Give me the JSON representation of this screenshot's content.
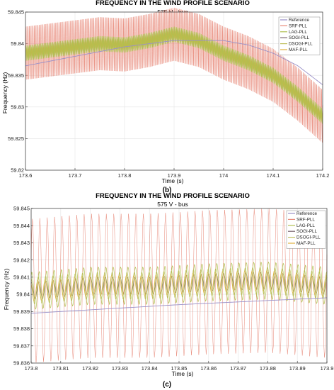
{
  "panel_labels": [
    "(b)",
    "(c)"
  ],
  "colors": {
    "reference": "#9a90c8",
    "srf": "#e88878",
    "lag": "#b0c050",
    "sogi": "#7a6470",
    "dsogi": "#c0c060",
    "maf": "#e0b040"
  },
  "chart_data": [
    {
      "type": "line",
      "title": "FREQUENCY IN THE WIND PROFILE SCENARIO",
      "subtitle": "575 V - bus",
      "xlabel": "Time (s)",
      "ylabel": "Frequency (Hz)",
      "xlim": [
        173.6,
        174.2
      ],
      "ylim": [
        59.82,
        59.845
      ],
      "xticks": [
        173.6,
        173.7,
        173.8,
        173.9,
        174,
        174.1,
        174.2
      ],
      "xtick_labels": [
        "173.6",
        "173.7",
        "173.8",
        "173.9",
        "174",
        "174.1",
        "174.2"
      ],
      "yticks": [
        59.82,
        59.825,
        59.83,
        59.835,
        59.84,
        59.845
      ],
      "ytick_labels": [
        "59.82",
        "59.825",
        "59.83",
        "59.835",
        "59.84",
        "59.845"
      ],
      "grid": true,
      "legend": "top-right",
      "series": [
        {
          "name": "Reference",
          "color_key": "reference",
          "x": [
            173.6,
            173.7,
            173.8,
            173.9,
            174.0,
            174.05,
            174.1,
            174.15,
            174.2
          ],
          "y": [
            59.8365,
            59.838,
            59.8395,
            59.8405,
            59.8405,
            59.8398,
            59.8385,
            59.8365,
            59.8335
          ]
        },
        {
          "name": "SRF-PLL",
          "color_key": "srf",
          "x": [
            173.6,
            173.65,
            173.7,
            173.75,
            173.8,
            173.85,
            173.9,
            173.95,
            174.0,
            174.05,
            174.1,
            174.15,
            174.2
          ],
          "y": [
            59.8385,
            59.839,
            59.8395,
            59.84,
            59.8398,
            59.8405,
            59.8415,
            59.8405,
            59.8385,
            59.837,
            59.835,
            59.832,
            59.8285
          ],
          "amp": 0.0042,
          "cycles": 240
        },
        {
          "name": "LAG-PLL",
          "color_key": "lag",
          "x": [
            173.6,
            173.65,
            173.7,
            173.75,
            173.8,
            173.85,
            173.9,
            173.95,
            174.0,
            174.05,
            174.1,
            174.15,
            174.2
          ],
          "y": [
            59.8385,
            59.839,
            59.8395,
            59.84,
            59.8398,
            59.8405,
            59.8415,
            59.8405,
            59.8385,
            59.837,
            59.835,
            59.832,
            59.8285
          ],
          "amp": 0.0012,
          "cycles": 240
        },
        {
          "name": "SOGI-PLL",
          "color_key": "sogi",
          "x": [
            173.6,
            173.65,
            173.7,
            173.75,
            173.8,
            173.85,
            173.9,
            173.95,
            174.0,
            174.05,
            174.1,
            174.15,
            174.2
          ],
          "y": [
            59.8385,
            59.839,
            59.8395,
            59.84,
            59.8398,
            59.8405,
            59.8415,
            59.8405,
            59.8385,
            59.837,
            59.835,
            59.832,
            59.8285
          ],
          "amp": 0.0005,
          "cycles": 240
        },
        {
          "name": "DSOGI-PLL",
          "color_key": "dsogi",
          "x": [
            173.6,
            173.65,
            173.7,
            173.75,
            173.8,
            173.85,
            173.9,
            173.95,
            174.0,
            174.05,
            174.1,
            174.15,
            174.2
          ],
          "y": [
            59.8385,
            59.839,
            59.8395,
            59.84,
            59.8398,
            59.8405,
            59.8415,
            59.8405,
            59.8385,
            59.837,
            59.835,
            59.832,
            59.8285
          ],
          "amp": 0.0009,
          "cycles": 240
        },
        {
          "name": "MAF-PLL",
          "color_key": "maf",
          "x": [
            173.6,
            173.65,
            173.7,
            173.75,
            173.8,
            173.85,
            173.9,
            173.95,
            174.0,
            174.05,
            174.1,
            174.15,
            174.2
          ],
          "y": [
            59.8385,
            59.839,
            59.8395,
            59.84,
            59.8398,
            59.8405,
            59.8415,
            59.8405,
            59.8385,
            59.837,
            59.835,
            59.832,
            59.8285
          ],
          "amp": 0.0006,
          "cycles": 240
        }
      ]
    },
    {
      "type": "line",
      "title": "FREQUENCY IN THE WIND PROFILE SCENARIO",
      "subtitle": "575 V - bus",
      "xlabel": "Time (s)",
      "ylabel": "Frequency (Hz)",
      "xlim": [
        173.8,
        173.9
      ],
      "ylim": [
        59.836,
        59.845
      ],
      "xticks": [
        173.8,
        173.81,
        173.82,
        173.83,
        173.84,
        173.85,
        173.86,
        173.87,
        173.88,
        173.89,
        173.9
      ],
      "xtick_labels": [
        "173.8",
        "173.81",
        "173.82",
        "173.83",
        "173.84",
        "173.85",
        "173.86",
        "173.87",
        "173.88",
        "173.89",
        "173.9"
      ],
      "yticks": [
        59.836,
        59.837,
        59.838,
        59.839,
        59.84,
        59.841,
        59.842,
        59.843,
        59.844,
        59.845
      ],
      "ytick_labels": [
        "59.836",
        "59.837",
        "59.838",
        "59.839",
        "59.84",
        "59.841",
        "59.842",
        "59.843",
        "59.844",
        "59.845"
      ],
      "grid": true,
      "legend": "top-right",
      "series": [
        {
          "name": "Reference",
          "color_key": "reference",
          "x": [
            173.8,
            173.85,
            173.9
          ],
          "y": [
            59.8389,
            59.8394,
            59.8398
          ]
        },
        {
          "name": "SRF-PLL",
          "color_key": "srf",
          "x": [
            173.8,
            173.82,
            173.84,
            173.86,
            173.88,
            173.9
          ],
          "y": [
            59.8402,
            59.8405,
            59.8405,
            59.8407,
            59.8408,
            59.8405
          ],
          "amp": 0.0042,
          "cycles": 40
        },
        {
          "name": "LAG-PLL",
          "color_key": "lag",
          "x": [
            173.8,
            173.82,
            173.84,
            173.86,
            173.88,
            173.9
          ],
          "y": [
            59.8402,
            59.8405,
            59.8405,
            59.8407,
            59.8408,
            59.8405
          ],
          "amp": 0.0011,
          "cycles": 40
        },
        {
          "name": "SOGI-PLL",
          "color_key": "sogi",
          "x": [
            173.8,
            173.82,
            173.84,
            173.86,
            173.88,
            173.9
          ],
          "y": [
            59.8402,
            59.8405,
            59.8405,
            59.8407,
            59.8408,
            59.8405
          ],
          "amp": 0.0005,
          "cycles": 40
        },
        {
          "name": "DSOGI-PLL",
          "color_key": "dsogi",
          "x": [
            173.8,
            173.82,
            173.84,
            173.86,
            173.88,
            173.9
          ],
          "y": [
            59.8402,
            59.8405,
            59.8405,
            59.8407,
            59.8408,
            59.8405
          ],
          "amp": 0.0008,
          "cycles": 40
        },
        {
          "name": "MAF-PLL",
          "color_key": "maf",
          "x": [
            173.8,
            173.82,
            173.84,
            173.86,
            173.88,
            173.9
          ],
          "y": [
            59.8402,
            59.8405,
            59.8405,
            59.8407,
            59.8408,
            59.8405
          ],
          "amp": 0.0006,
          "cycles": 40
        }
      ]
    }
  ]
}
